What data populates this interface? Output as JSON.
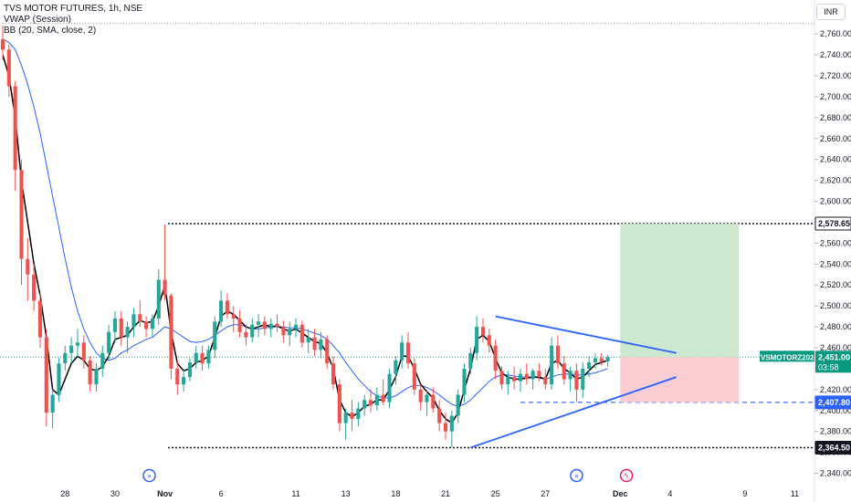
{
  "header": {
    "title": "TVS MOTOR FUTURES, 1h, NSE",
    "indicator_vwap": "VWAP (Session)",
    "indicator_bb": "BB (20, SMA, close, 2)",
    "currency": "INR"
  },
  "price_labels": {
    "target": "2,578.65",
    "last_symbol": "TVSMOTORZ2024",
    "last_price": "2,451.00",
    "countdown": "03:58",
    "stop": "2,407.80",
    "low": "2,364.50"
  },
  "colors": {
    "up": "#26a69a",
    "down": "#ef5350",
    "vwap": "#000000",
    "bb_basis": "#2962ff",
    "trendline": "#2962ff",
    "target_zone": "#c8e6c9",
    "stop_zone": "#f8c8cc",
    "last_price_bg": "#089981"
  },
  "chart_data": {
    "type": "candlestick",
    "ylim": [
      2330,
      2775
    ],
    "y_ticks": [
      {
        "value": 2340,
        "label": "2,340.00"
      },
      {
        "value": 2360,
        "label": "2,360.00"
      },
      {
        "value": 2380,
        "label": "2,380.00"
      },
      {
        "value": 2400,
        "label": "2,400.00"
      },
      {
        "value": 2420,
        "label": "2,420.00"
      },
      {
        "value": 2440,
        "label": "2,440.00"
      },
      {
        "value": 2460,
        "label": "2,460.00"
      },
      {
        "value": 2480,
        "label": "2,480.00"
      },
      {
        "value": 2500,
        "label": "2,500.00"
      },
      {
        "value": 2520,
        "label": "2,520.00"
      },
      {
        "value": 2540,
        "label": "2,540.00"
      },
      {
        "value": 2560,
        "label": "2,560.00"
      },
      {
        "value": 2580,
        "label": "2,580.00"
      },
      {
        "value": 2600,
        "label": "2,600.00"
      },
      {
        "value": 2620,
        "label": "2,620.00"
      },
      {
        "value": 2640,
        "label": "2,640.00"
      },
      {
        "value": 2660,
        "label": "2,660.00"
      },
      {
        "value": 2680,
        "label": "2,680.00"
      },
      {
        "value": 2700,
        "label": "2,700.00"
      },
      {
        "value": 2720,
        "label": "2,720.00"
      },
      {
        "value": 2740,
        "label": "2,740.00"
      },
      {
        "value": 2760,
        "label": "2,760.00"
      }
    ],
    "x_ticks": [
      {
        "bar": 10,
        "label": "28"
      },
      {
        "bar": 18,
        "label": "30"
      },
      {
        "bar": 26,
        "label": "Nov"
      },
      {
        "bar": 35,
        "label": "6"
      },
      {
        "bar": 47,
        "label": "11"
      },
      {
        "bar": 55,
        "label": "13"
      },
      {
        "bar": 63,
        "label": "18"
      },
      {
        "bar": 71,
        "label": "21"
      },
      {
        "bar": 79,
        "label": "25"
      },
      {
        "bar": 87,
        "label": "27"
      },
      {
        "bar": 99,
        "label": "Dec"
      },
      {
        "bar": 107,
        "label": "4"
      },
      {
        "bar": 119,
        "label": "9"
      },
      {
        "bar": 127,
        "label": "11"
      }
    ],
    "levels": {
      "top_dotted": 2770,
      "target": 2578.65,
      "entry": 2451.0,
      "stop": 2407.8,
      "low": 2364.5
    },
    "trendlines": [
      {
        "from": [
          79,
          2490
        ],
        "to": [
          108,
          2455
        ]
      },
      {
        "from": [
          75,
          2364.5
        ],
        "to": [
          108,
          2432
        ]
      }
    ],
    "position": {
      "start_bar": 99,
      "end_bar": 118,
      "entry": 2451.0,
      "target": 2578.65,
      "stop": 2407.8
    },
    "ohlc": [
      [
        2755,
        2768,
        2735,
        2745
      ],
      [
        2745,
        2750,
        2700,
        2710
      ],
      [
        2710,
        2715,
        2610,
        2630
      ],
      [
        2630,
        2640,
        2520,
        2545
      ],
      [
        2545,
        2565,
        2505,
        2530
      ],
      [
        2530,
        2540,
        2495,
        2505
      ],
      [
        2505,
        2512,
        2460,
        2470
      ],
      [
        2470,
        2478,
        2385,
        2398
      ],
      [
        2398,
        2420,
        2383,
        2415
      ],
      [
        2415,
        2450,
        2408,
        2445
      ],
      [
        2445,
        2462,
        2438,
        2455
      ],
      [
        2455,
        2470,
        2445,
        2462
      ],
      [
        2462,
        2478,
        2450,
        2465
      ],
      [
        2465,
        2472,
        2440,
        2448
      ],
      [
        2448,
        2452,
        2418,
        2425
      ],
      [
        2425,
        2445,
        2418,
        2440
      ],
      [
        2440,
        2462,
        2432,
        2455
      ],
      [
        2455,
        2482,
        2448,
        2475
      ],
      [
        2475,
        2495,
        2465,
        2488
      ],
      [
        2488,
        2495,
        2462,
        2470
      ],
      [
        2470,
        2485,
        2455,
        2480
      ],
      [
        2480,
        2498,
        2470,
        2492
      ],
      [
        2492,
        2505,
        2480,
        2485
      ],
      [
        2485,
        2490,
        2470,
        2478
      ],
      [
        2478,
        2492,
        2470,
        2488
      ],
      [
        2488,
        2535,
        2482,
        2525
      ],
      [
        2525,
        2578,
        2505,
        2510
      ],
      [
        2510,
        2512,
        2430,
        2440
      ],
      [
        2440,
        2448,
        2415,
        2425
      ],
      [
        2425,
        2440,
        2418,
        2432
      ],
      [
        2432,
        2450,
        2428,
        2446
      ],
      [
        2446,
        2462,
        2440,
        2455
      ],
      [
        2455,
        2462,
        2438,
        2445
      ],
      [
        2445,
        2462,
        2440,
        2458
      ],
      [
        2458,
        2490,
        2450,
        2485
      ],
      [
        2485,
        2515,
        2480,
        2505
      ],
      [
        2505,
        2512,
        2488,
        2492
      ],
      [
        2492,
        2500,
        2475,
        2488
      ],
      [
        2488,
        2496,
        2470,
        2475
      ],
      [
        2475,
        2482,
        2462,
        2470
      ],
      [
        2470,
        2488,
        2465,
        2482
      ],
      [
        2482,
        2492,
        2470,
        2485
      ],
      [
        2485,
        2490,
        2472,
        2478
      ],
      [
        2478,
        2488,
        2470,
        2483
      ],
      [
        2483,
        2492,
        2475,
        2480
      ],
      [
        2480,
        2486,
        2465,
        2472
      ],
      [
        2472,
        2485,
        2462,
        2478
      ],
      [
        2478,
        2488,
        2470,
        2482
      ],
      [
        2482,
        2486,
        2460,
        2465
      ],
      [
        2465,
        2478,
        2455,
        2470
      ],
      [
        2470,
        2478,
        2452,
        2458
      ],
      [
        2458,
        2475,
        2450,
        2468
      ],
      [
        2468,
        2472,
        2440,
        2445
      ],
      [
        2445,
        2452,
        2420,
        2425
      ],
      [
        2425,
        2430,
        2380,
        2388
      ],
      [
        2388,
        2402,
        2372,
        2398
      ],
      [
        2398,
        2410,
        2380,
        2392
      ],
      [
        2392,
        2408,
        2385,
        2402
      ],
      [
        2402,
        2415,
        2395,
        2410
      ],
      [
        2410,
        2420,
        2398,
        2405
      ],
      [
        2405,
        2422,
        2400,
        2415
      ],
      [
        2415,
        2430,
        2405,
        2408
      ],
      [
        2408,
        2440,
        2402,
        2435
      ],
      [
        2435,
        2452,
        2425,
        2448
      ],
      [
        2448,
        2472,
        2440,
        2465
      ],
      [
        2465,
        2475,
        2440,
        2445
      ],
      [
        2445,
        2450,
        2415,
        2420
      ],
      [
        2420,
        2425,
        2400,
        2408
      ],
      [
        2408,
        2420,
        2395,
        2415
      ],
      [
        2415,
        2422,
        2398,
        2402
      ],
      [
        2402,
        2410,
        2380,
        2388
      ],
      [
        2388,
        2398,
        2372,
        2380
      ],
      [
        2380,
        2400,
        2365,
        2395
      ],
      [
        2395,
        2420,
        2388,
        2415
      ],
      [
        2415,
        2445,
        2408,
        2440
      ],
      [
        2440,
        2460,
        2435,
        2455
      ],
      [
        2455,
        2490,
        2448,
        2480
      ],
      [
        2480,
        2488,
        2465,
        2472
      ],
      [
        2472,
        2478,
        2455,
        2462
      ],
      [
        2462,
        2468,
        2430,
        2438
      ],
      [
        2438,
        2442,
        2420,
        2425
      ],
      [
        2425,
        2438,
        2415,
        2432
      ],
      [
        2432,
        2442,
        2420,
        2428
      ],
      [
        2428,
        2440,
        2418,
        2435
      ],
      [
        2435,
        2445,
        2425,
        2430
      ],
      [
        2430,
        2440,
        2420,
        2438
      ],
      [
        2438,
        2445,
        2428,
        2432
      ],
      [
        2432,
        2440,
        2420,
        2425
      ],
      [
        2425,
        2470,
        2420,
        2462
      ],
      [
        2462,
        2472,
        2440,
        2445
      ],
      [
        2445,
        2452,
        2425,
        2430
      ],
      [
        2430,
        2442,
        2418,
        2438
      ],
      [
        2438,
        2445,
        2408,
        2420
      ],
      [
        2420,
        2446,
        2412,
        2440
      ],
      [
        2440,
        2452,
        2432,
        2446
      ],
      [
        2446,
        2455,
        2440,
        2450
      ],
      [
        2450,
        2455,
        2443,
        2447
      ],
      [
        2447,
        2453,
        2442,
        2451
      ]
    ],
    "vwap": [
      2740,
      2720,
      2680,
      2620,
      2580,
      2540,
      2510,
      2470,
      2420,
      2415,
      2430,
      2445,
      2452,
      2448,
      2440,
      2438,
      2442,
      2452,
      2468,
      2470,
      2472,
      2480,
      2486,
      2484,
      2485,
      2500,
      2520,
      2475,
      2445,
      2438,
      2440,
      2446,
      2448,
      2452,
      2470,
      2490,
      2495,
      2492,
      2486,
      2480,
      2478,
      2480,
      2482,
      2480,
      2481,
      2478,
      2476,
      2478,
      2474,
      2470,
      2466,
      2464,
      2455,
      2440,
      2410,
      2398,
      2394,
      2398,
      2404,
      2406,
      2410,
      2410,
      2420,
      2432,
      2452,
      2452,
      2440,
      2425,
      2418,
      2412,
      2400,
      2392,
      2388,
      2398,
      2420,
      2440,
      2468,
      2472,
      2466,
      2450,
      2436,
      2432,
      2430,
      2430,
      2431,
      2432,
      2432,
      2430,
      2445,
      2448,
      2440,
      2436,
      2430,
      2432,
      2438,
      2444,
      2446,
      2448
    ],
    "bb_basis": [
      2755,
      2752,
      2745,
      2730,
      2712,
      2690,
      2665,
      2635,
      2605,
      2575,
      2545,
      2518,
      2495,
      2478,
      2465,
      2455,
      2450,
      2448,
      2450,
      2455,
      2458,
      2462,
      2465,
      2468,
      2470,
      2475,
      2480,
      2478,
      2474,
      2470,
      2466,
      2465,
      2466,
      2468,
      2472,
      2476,
      2480,
      2482,
      2482,
      2480,
      2478,
      2478,
      2479,
      2480,
      2480,
      2480,
      2479,
      2479,
      2478,
      2476,
      2474,
      2472,
      2468,
      2462,
      2455,
      2446,
      2438,
      2430,
      2424,
      2418,
      2414,
      2412,
      2412,
      2414,
      2418,
      2422,
      2424,
      2424,
      2422,
      2419,
      2415,
      2410,
      2406,
      2404,
      2406,
      2410,
      2416,
      2422,
      2428,
      2432,
      2434,
      2434,
      2433,
      2432,
      2432,
      2432,
      2431,
      2430,
      2432,
      2434,
      2435,
      2435,
      2434,
      2434,
      2435,
      2436,
      2438,
      2440
    ]
  }
}
